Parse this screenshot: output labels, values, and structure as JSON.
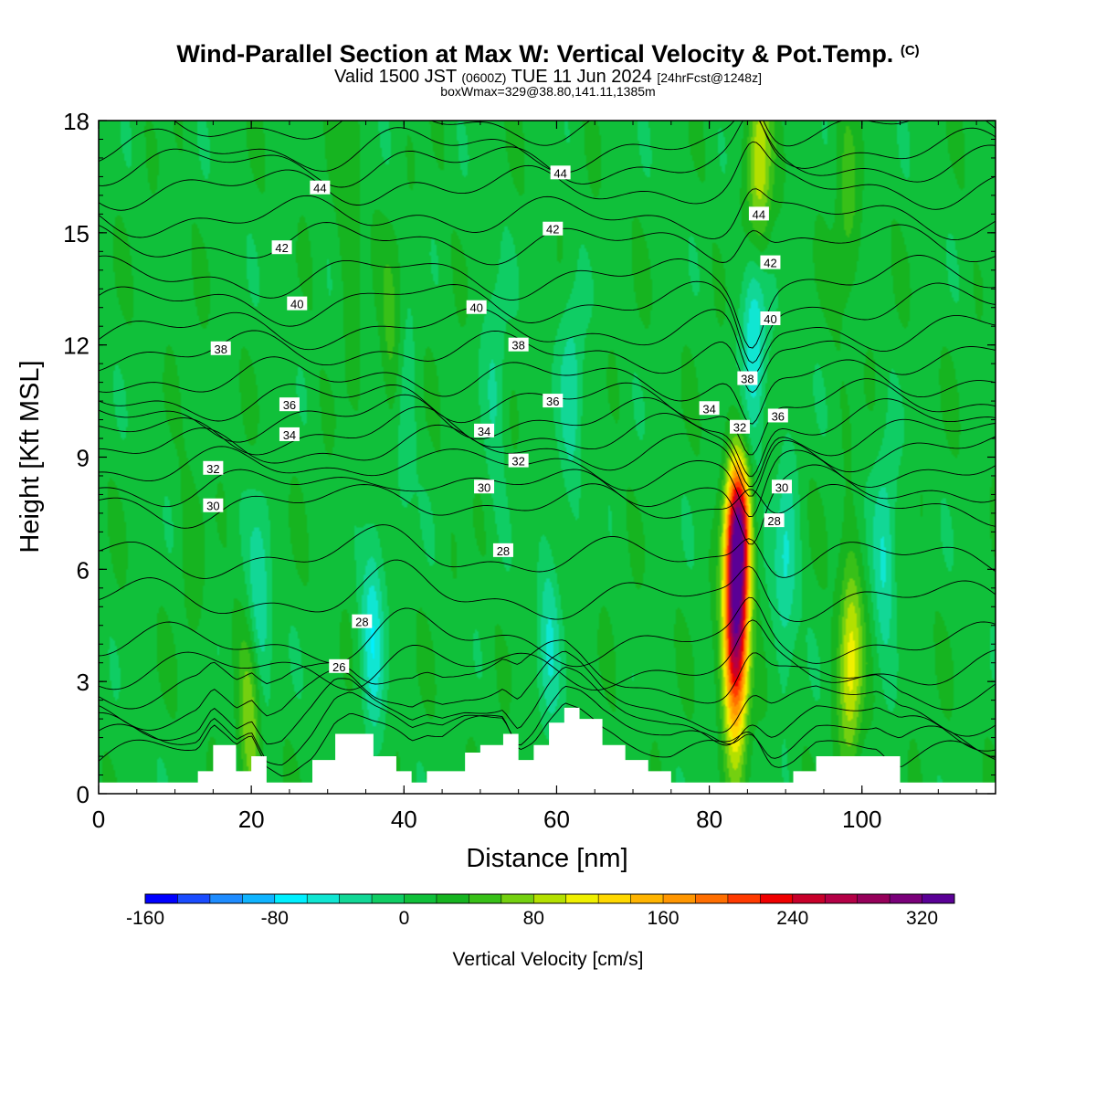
{
  "header": {
    "title": "Wind-Parallel Section at Max W: Vertical Velocity & Pot.Temp.",
    "title_mark": "(C)",
    "subtitle_valid": "Valid 1500 JST",
    "subtitle_utc": "(0600Z)",
    "subtitle_date": "TUE 11 Jun 2024",
    "subtitle_fcst": "[24hrFcst@1248z]",
    "info_line": "boxWmax=329@38.80,141.11,1385m"
  },
  "chart_data": {
    "type": "heatmap",
    "title": "Wind-Parallel Section at Max W: Vertical Velocity & Pot.Temp.",
    "xlabel": "Distance [nm]",
    "ylabel": "Height [Kft MSL]",
    "xlim": [
      0,
      117.5
    ],
    "ylim": [
      0,
      18
    ],
    "xticks": [
      0,
      20,
      40,
      60,
      80,
      100
    ],
    "yticks": [
      0,
      3,
      6,
      9,
      12,
      15,
      18
    ],
    "grid": false,
    "colorbar": {
      "label": "Vertical Velocity [cm/s]",
      "min": -160,
      "max": 360,
      "step": 20,
      "tick_values": [
        -160,
        -80,
        0,
        80,
        160,
        240,
        320
      ],
      "colors": [
        "#0000ff",
        "#1a4cff",
        "#1e8cff",
        "#10b4ff",
        "#00f0ff",
        "#10e6d2",
        "#12d796",
        "#0fcd64",
        "#10c03a",
        "#16b420",
        "#38c018",
        "#74d010",
        "#b4e000",
        "#f0f000",
        "#ffd800",
        "#ffb400",
        "#ff9600",
        "#ff6e00",
        "#ff3a00",
        "#f00000",
        "#c8002a",
        "#b40046",
        "#96005a",
        "#7a007a",
        "#5a0096"
      ]
    },
    "theta_contours": {
      "name": "Pot.Temp.",
      "levels": [
        24,
        26,
        28,
        30,
        32,
        34,
        36,
        38,
        40,
        42,
        44,
        46,
        48
      ],
      "labels": [
        {
          "text": "44",
          "x": 29,
          "y": 16.2
        },
        {
          "text": "44",
          "x": 60.5,
          "y": 16.6
        },
        {
          "text": "44",
          "x": 86.5,
          "y": 15.5
        },
        {
          "text": "42",
          "x": 24,
          "y": 14.6
        },
        {
          "text": "42",
          "x": 59.5,
          "y": 15.1
        },
        {
          "text": "42",
          "x": 88,
          "y": 14.2
        },
        {
          "text": "40",
          "x": 26,
          "y": 13.1
        },
        {
          "text": "40",
          "x": 49.5,
          "y": 13.0
        },
        {
          "text": "40",
          "x": 88,
          "y": 12.7
        },
        {
          "text": "38",
          "x": 16,
          "y": 11.9
        },
        {
          "text": "38",
          "x": 55,
          "y": 12.0
        },
        {
          "text": "38",
          "x": 85,
          "y": 11.1
        },
        {
          "text": "36",
          "x": 25,
          "y": 10.4
        },
        {
          "text": "36",
          "x": 59.5,
          "y": 10.5
        },
        {
          "text": "36",
          "x": 89,
          "y": 10.1
        },
        {
          "text": "34",
          "x": 25,
          "y": 9.6
        },
        {
          "text": "34",
          "x": 50.5,
          "y": 9.7
        },
        {
          "text": "34",
          "x": 80,
          "y": 10.3
        },
        {
          "text": "32",
          "x": 15,
          "y": 8.7
        },
        {
          "text": "32",
          "x": 55,
          "y": 8.9
        },
        {
          "text": "32",
          "x": 84,
          "y": 9.8
        },
        {
          "text": "30",
          "x": 15,
          "y": 7.7
        },
        {
          "text": "30",
          "x": 50.5,
          "y": 8.2
        },
        {
          "text": "30",
          "x": 89.5,
          "y": 8.2
        },
        {
          "text": "28",
          "x": 53,
          "y": 6.5
        },
        {
          "text": "28",
          "x": 34.5,
          "y": 4.6
        },
        {
          "text": "28",
          "x": 88.5,
          "y": 7.3
        },
        {
          "text": "26",
          "x": 31.5,
          "y": 3.4
        }
      ]
    },
    "terrain": {
      "x": [
        0,
        13,
        15,
        18,
        20,
        22,
        24,
        28,
        31,
        33,
        36,
        39,
        41,
        43,
        45,
        48,
        50,
        53,
        55,
        57,
        59,
        61,
        63,
        66,
        69,
        72,
        75,
        80,
        85,
        88,
        91,
        94,
        98,
        102,
        105,
        110,
        117.5
      ],
      "kft": [
        0.3,
        0.6,
        1.3,
        0.6,
        1.0,
        0.3,
        0.3,
        0.9,
        1.6,
        1.6,
        1.0,
        0.6,
        0.3,
        0.6,
        0.6,
        1.1,
        1.3,
        1.6,
        0.9,
        1.3,
        1.9,
        2.3,
        2.0,
        1.3,
        0.9,
        0.6,
        0.3,
        0.3,
        0.3,
        0.3,
        0.6,
        1.0,
        1.0,
        1.0,
        0.3,
        0.3,
        0.3
      ]
    },
    "w_features": [
      {
        "x": 83.5,
        "y": 4.8,
        "peak": 329
      },
      {
        "x": 84,
        "y": 7.2,
        "peak": 160
      },
      {
        "x": 86.5,
        "y": 16.5,
        "peak": 100
      },
      {
        "x": 86,
        "y": 12.5,
        "peak": -80
      },
      {
        "x": 98.5,
        "y": 3.5,
        "peak": 100
      },
      {
        "x": 20,
        "y": 2.0,
        "peak": 80
      },
      {
        "x": 21,
        "y": 4.6,
        "peak": -60
      },
      {
        "x": 36,
        "y": 4.5,
        "peak": -60
      },
      {
        "x": 59,
        "y": 4.0,
        "peak": -40
      },
      {
        "x": 62,
        "y": 11.0,
        "peak": -40
      },
      {
        "x": 103,
        "y": 6.5,
        "peak": -50
      },
      {
        "x": 90,
        "y": 6.0,
        "peak": -50
      },
      {
        "x": 38.5,
        "y": 12.0,
        "peak": 40
      },
      {
        "x": 33,
        "y": 15.0,
        "peak": 30
      },
      {
        "x": 98,
        "y": 15.5,
        "peak": 40
      },
      {
        "x": 52,
        "y": 11.0,
        "peak": -30
      },
      {
        "x": 40,
        "y": 10.0,
        "peak": -30
      },
      {
        "x": 12,
        "y": 6.0,
        "peak": 20
      }
    ]
  }
}
